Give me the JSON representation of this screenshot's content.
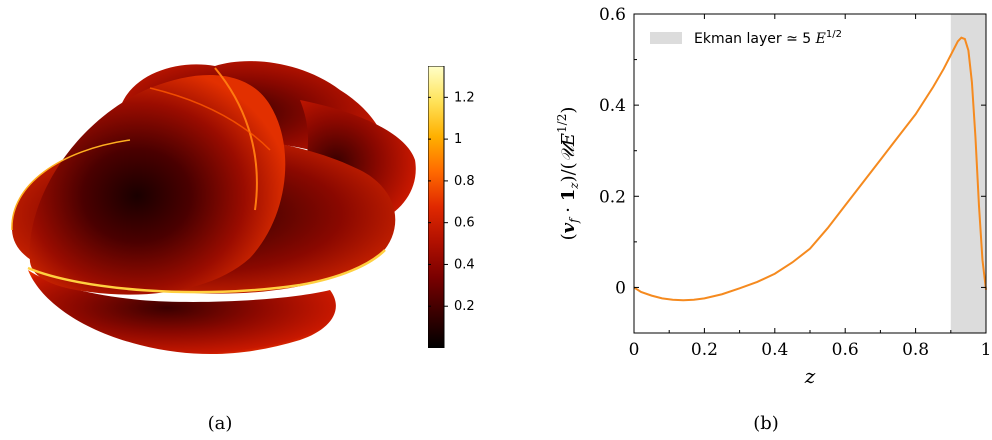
{
  "panels": {
    "a_label": "(a)",
    "b_label": "(b)"
  },
  "colorbar": {
    "ticks": [
      "1.2",
      "1",
      "0.8",
      "0.6",
      "0.4",
      "0.2"
    ],
    "tick_values": [
      1.2,
      1.0,
      0.8,
      0.6,
      0.4,
      0.2
    ],
    "min": 0.0,
    "max": 1.35,
    "colormap": [
      "#000000",
      "#3a0000",
      "#7a0000",
      "#b01000",
      "#e02800",
      "#ff6a00",
      "#ffb000",
      "#ffe35a",
      "#ffffc8"
    ]
  },
  "chart_data": {
    "type": "line",
    "title": "",
    "xlabel": "z",
    "ylabel": "(v_f · 1_z)/(𝒰E^{1/2})",
    "xlim": [
      0,
      1
    ],
    "ylim": [
      -0.1,
      0.6
    ],
    "xticks": [
      "0",
      "0.2",
      "0.4",
      "0.6",
      "0.8",
      "1"
    ],
    "xtick_values": [
      0,
      0.2,
      0.4,
      0.6,
      0.8,
      1.0
    ],
    "yticks": [
      "0",
      "0.2",
      "0.4",
      "0.6"
    ],
    "ytick_values": [
      0,
      0.2,
      0.4,
      0.6
    ],
    "line_color": "#f58a1f",
    "shade_color": "#dcdcdc",
    "shaded_region": [
      0.9,
      1.0
    ],
    "legend": {
      "label_text": "Ekman layer ≃ 5",
      "label_math": "E",
      "label_sup": "1/2",
      "placement": "top-left"
    },
    "series": [
      {
        "x": [
          0.0,
          0.02,
          0.05,
          0.08,
          0.11,
          0.14,
          0.17,
          0.2,
          0.25,
          0.3,
          0.35,
          0.4,
          0.45,
          0.5,
          0.55,
          0.6,
          0.65,
          0.7,
          0.75,
          0.8,
          0.85,
          0.88,
          0.9,
          0.92,
          0.93,
          0.94,
          0.95,
          0.96,
          0.97,
          0.98,
          0.99,
          1.0
        ],
        "y": [
          0.0,
          -0.01,
          -0.018,
          -0.024,
          -0.027,
          -0.028,
          -0.027,
          -0.024,
          -0.015,
          -0.002,
          0.012,
          0.03,
          0.055,
          0.085,
          0.13,
          0.18,
          0.23,
          0.28,
          0.33,
          0.38,
          0.44,
          0.48,
          0.51,
          0.54,
          0.548,
          0.545,
          0.52,
          0.45,
          0.33,
          0.18,
          0.06,
          -0.005
        ]
      }
    ]
  }
}
